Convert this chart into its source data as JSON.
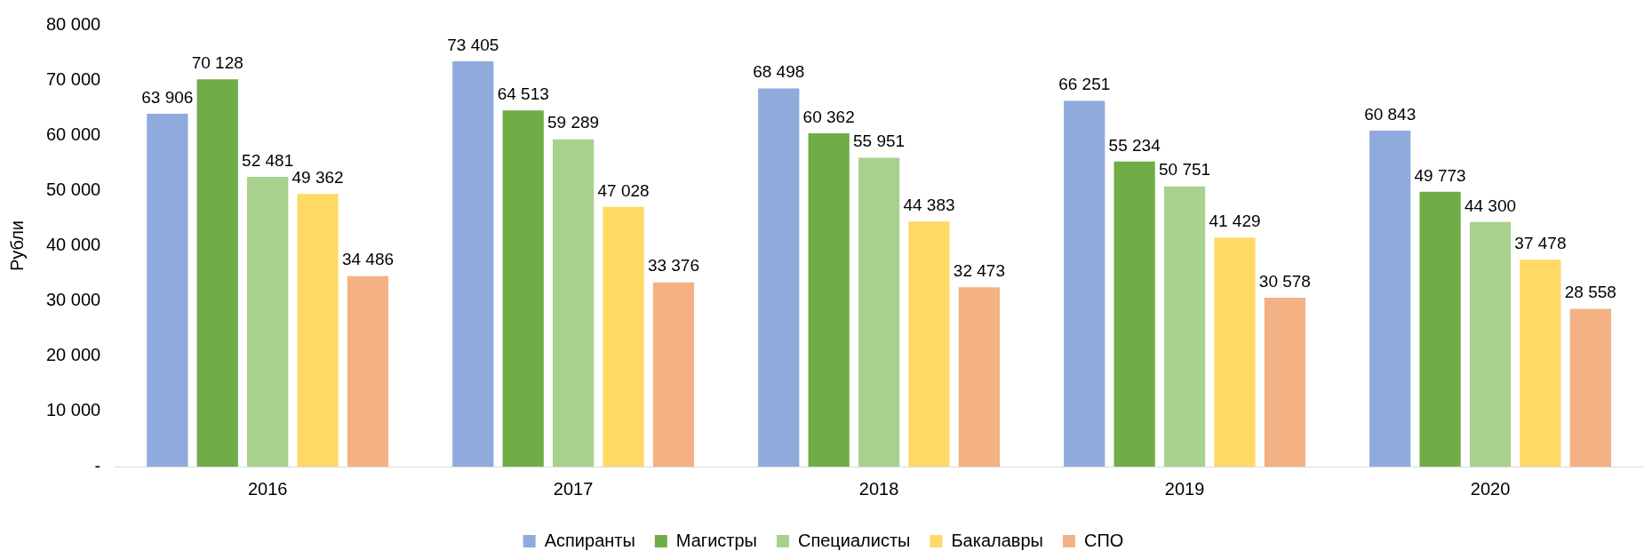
{
  "chart_data": {
    "type": "bar",
    "ylabel": "Рубли",
    "categories": [
      "2016",
      "2017",
      "2018",
      "2019",
      "2020"
    ],
    "series": [
      {
        "name": "Аспиранты",
        "color": "#8faadc",
        "values": [
          63906,
          73405,
          68498,
          66251,
          60843
        ],
        "value_labels": [
          "63 906",
          "73 405",
          "68 498",
          "66 251",
          "60 843"
        ]
      },
      {
        "name": "Магистры",
        "color": "#70ad47",
        "values": [
          70128,
          64513,
          60362,
          55234,
          49773
        ],
        "value_labels": [
          "70 128",
          "64 513",
          "60 362",
          "55 234",
          "49 773"
        ]
      },
      {
        "name": "Специалисты",
        "color": "#a9d18e",
        "values": [
          52481,
          59289,
          55951,
          50751,
          44300
        ],
        "value_labels": [
          "52 481",
          "59 289",
          "55 951",
          "50 751",
          "44 300"
        ]
      },
      {
        "name": "Бакалавры",
        "color": "#ffd966",
        "values": [
          49362,
          47028,
          44383,
          41429,
          37478
        ],
        "value_labels": [
          "49 362",
          "47 028",
          "44 383",
          "41 429",
          "37 478"
        ]
      },
      {
        "name": "СПО",
        "color": "#f4b183",
        "values": [
          34486,
          33376,
          32473,
          30578,
          28558
        ],
        "value_labels": [
          "34 486",
          "33 376",
          "32 473",
          "30 578",
          "28 558"
        ]
      }
    ],
    "ylim": [
      0,
      80000
    ],
    "yticks": [
      {
        "value": 0,
        "label": "-"
      },
      {
        "value": 10000,
        "label": "10 000"
      },
      {
        "value": 20000,
        "label": "20 000"
      },
      {
        "value": 30000,
        "label": "30 000"
      },
      {
        "value": 40000,
        "label": "40 000"
      },
      {
        "value": 50000,
        "label": "50 000"
      },
      {
        "value": 60000,
        "label": "60 000"
      },
      {
        "value": 70000,
        "label": "70 000"
      },
      {
        "value": 80000,
        "label": "80 000"
      }
    ],
    "grid": false,
    "legend": "bottom"
  }
}
